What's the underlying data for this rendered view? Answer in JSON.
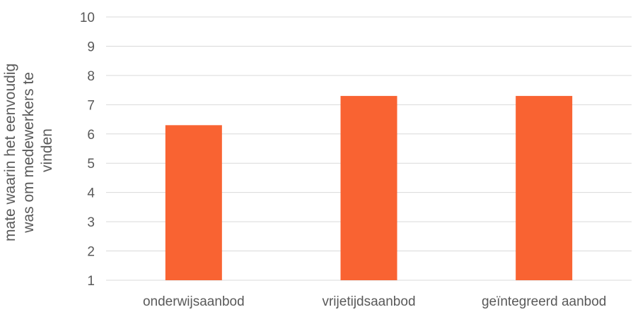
{
  "chart_data": {
    "type": "bar",
    "categories": [
      "onderwijsaanbod",
      "vrijetijdsaanbod",
      "geïntegreerd aanbod"
    ],
    "values": [
      6.3,
      7.3,
      7.3
    ],
    "ylim": [
      1,
      10
    ],
    "yticks": [
      "1",
      "2",
      "3",
      "4",
      "5",
      "6",
      "7",
      "8",
      "9",
      "10"
    ],
    "ylabel_lines": [
      "mate waarin het eenvoudig",
      "was om  medewerkers te",
      "vinden"
    ],
    "grid": true,
    "legend": "none",
    "colors": {
      "bar": "#f96332",
      "grid": "#d9d9d9",
      "text": "#595959"
    }
  }
}
